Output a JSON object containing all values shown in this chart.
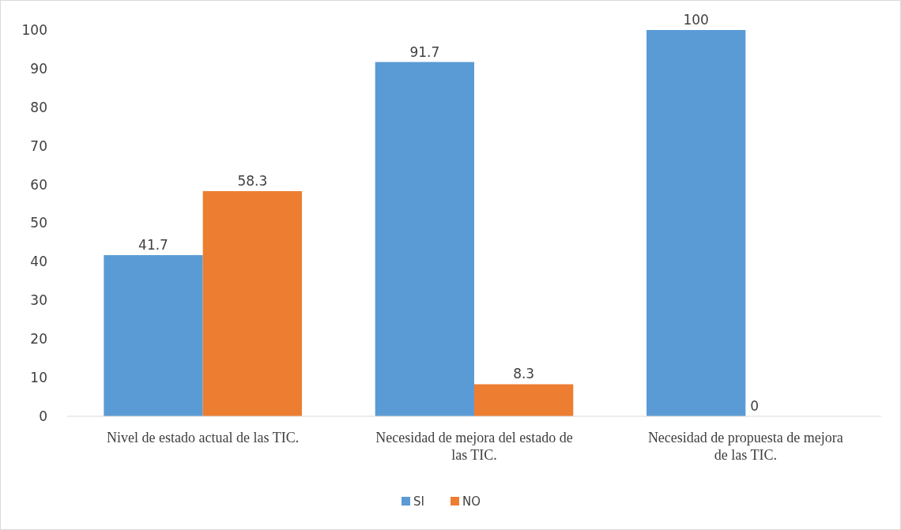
{
  "chart_data": {
    "type": "bar",
    "categories": [
      "Nivel de estado actual de las TIC.",
      "Necesidad de mejora del estado de las TIC.",
      "Necesidad de propuesta de mejora de las TIC."
    ],
    "series": [
      {
        "name": "SI",
        "color": "#5b9bd5",
        "values": [
          41.7,
          91.7,
          100
        ],
        "value_labels": [
          "41.7",
          "91.7",
          "100"
        ]
      },
      {
        "name": "NO",
        "color": "#ed7d31",
        "values": [
          58.3,
          8.3,
          0
        ],
        "value_labels": [
          "58.3",
          "8.3",
          null
        ]
      }
    ],
    "annotations": [
      {
        "text": "0",
        "x": "Necesidad de propuesta de mejora de las TIC.",
        "y": 0
      }
    ],
    "ylim": [
      0,
      100
    ],
    "yticks": [
      0,
      10,
      20,
      30,
      40,
      50,
      60,
      70,
      80,
      90,
      100
    ],
    "grid": false,
    "legend": "bottom"
  }
}
